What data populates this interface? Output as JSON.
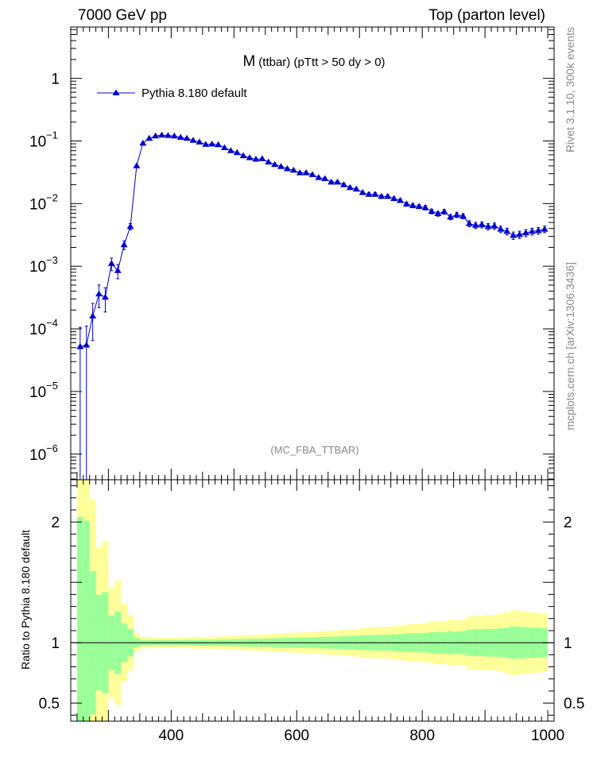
{
  "header": {
    "left": "7000 GeV pp",
    "right": "Top (parton level)"
  },
  "side": {
    "rivet": "Rivet 3.1.10,  300k events",
    "mcplots": "mcplots.cern.ch [arXiv:1306.3436]"
  },
  "colors": {
    "series": "#0000cc",
    "band_inner": "#99ff99",
    "band_outer": "#ffff99"
  },
  "chart_data": {
    "type": "line",
    "title": "M (ttbar) (pTtt > 50 dy > 0)",
    "title_main": "M",
    "title_sub": "(ttbar) (pTtt > 50 dy > 0)",
    "watermark": "(MC_FBA_TTBAR)",
    "legend": [
      "Pythia 8.180 default"
    ],
    "ratio_ylabel": "Ratio to Pythia 8.180 default",
    "xlim": [
      240,
      1010
    ],
    "ylim": [
      3.9e-07,
      6.6
    ],
    "ratio_ylim": [
      0.35,
      2.35
    ],
    "x_ticks": [
      400,
      600,
      800,
      1000
    ],
    "x_tick_labels": [
      "400",
      "600",
      "800",
      "1000"
    ],
    "ratio_ticks": [
      0.5,
      1,
      2
    ],
    "ratio_tick_labels": [
      "0.5",
      "1",
      "2"
    ],
    "y_tick_mantissa": [
      "1",
      "10",
      "10",
      "10",
      "10",
      "10",
      "10"
    ],
    "y_tick_exponent": [
      "",
      "−1",
      "−2",
      "−3",
      "−4",
      "−5",
      "−6"
    ],
    "series": [
      {
        "name": "Pythia 8.180 default",
        "x": [
          255,
          265,
          275,
          285,
          295,
          305,
          315,
          325,
          335,
          345,
          355,
          365,
          375,
          385,
          395,
          405,
          415,
          425,
          435,
          445,
          455,
          465,
          475,
          485,
          495,
          505,
          515,
          525,
          535,
          545,
          555,
          565,
          575,
          585,
          595,
          605,
          615,
          625,
          635,
          645,
          655,
          665,
          675,
          685,
          695,
          705,
          715,
          725,
          735,
          745,
          755,
          765,
          775,
          785,
          795,
          805,
          815,
          825,
          835,
          845,
          855,
          865,
          875,
          885,
          895,
          905,
          915,
          925,
          935,
          945,
          955,
          965,
          975,
          985,
          995
        ],
        "values": [
          5.2e-05,
          5.5e-05,
          0.00016,
          0.00036,
          0.00032,
          0.0011,
          0.00085,
          0.0022,
          0.0043,
          0.04,
          0.092,
          0.11,
          0.12,
          0.124,
          0.122,
          0.12,
          0.114,
          0.11,
          0.102,
          0.096,
          0.088,
          0.089,
          0.087,
          0.078,
          0.07,
          0.065,
          0.058,
          0.054,
          0.051,
          0.052,
          0.046,
          0.042,
          0.039,
          0.036,
          0.034,
          0.031,
          0.031,
          0.029,
          0.026,
          0.025,
          0.022,
          0.022,
          0.02,
          0.018,
          0.017,
          0.015,
          0.014,
          0.014,
          0.013,
          0.013,
          0.012,
          0.0112,
          0.0098,
          0.0093,
          0.009,
          0.0086,
          0.0075,
          0.0069,
          0.0074,
          0.0061,
          0.0066,
          0.0063,
          0.0048,
          0.0045,
          0.0046,
          0.0043,
          0.0044,
          0.0039,
          0.0036,
          0.0031,
          0.0032,
          0.0034,
          0.0036,
          0.0037,
          0.0039
        ]
      }
    ]
  }
}
